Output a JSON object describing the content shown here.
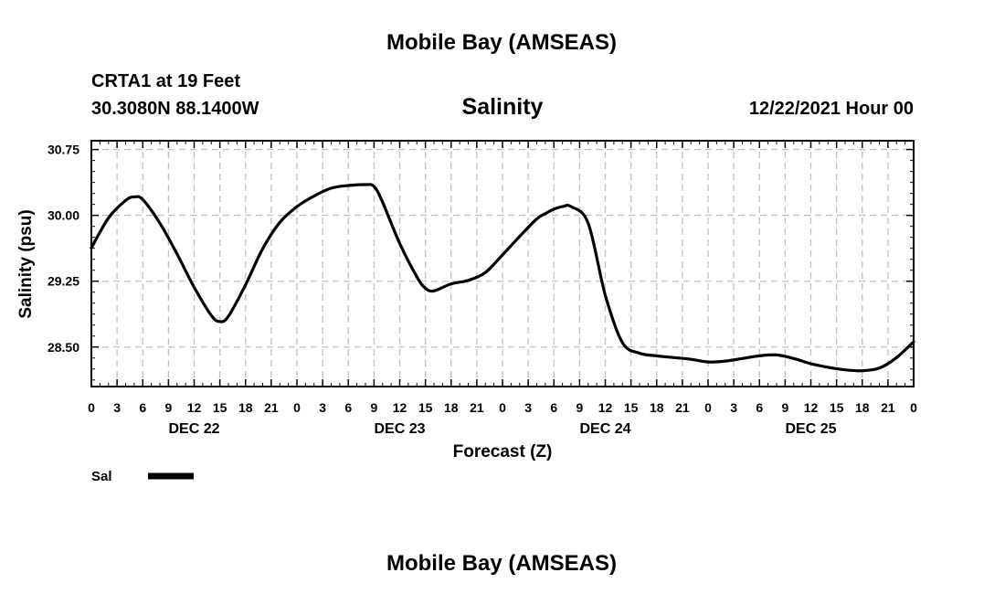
{
  "header": {
    "title_top": "Mobile Bay (AMSEAS)",
    "title_bottom": "Mobile Bay (AMSEAS)",
    "station": "CRTA1 at 19 Feet",
    "location": "30.3080N  88.1400W",
    "forecast_time": "12/22/2021 Hour 00"
  },
  "colors": {
    "line": "#000000",
    "grid": "#c0c0c0",
    "background": "#ffffff"
  },
  "chart_data": {
    "type": "line",
    "title": "Salinity",
    "xlabel": "Forecast (Z)",
    "ylabel": "Salinity (psu)",
    "xlim": [
      0,
      96
    ],
    "ylim": [
      28.05,
      30.85
    ],
    "grid": true,
    "legend_position": "bottom-left",
    "x_tick_labels": [
      "0",
      "3",
      "6",
      "9",
      "12",
      "15",
      "18",
      "21",
      "0",
      "3",
      "6",
      "9",
      "12",
      "15",
      "18",
      "21",
      "0",
      "3",
      "6",
      "9",
      "12",
      "15",
      "18",
      "21",
      "0",
      "3",
      "6",
      "9",
      "12",
      "15",
      "18",
      "21",
      "0"
    ],
    "y_ticks": [
      28.5,
      29.25,
      30.0,
      30.75
    ],
    "y_tick_labels": [
      "28.50",
      "29.25",
      "30.00",
      "30.75"
    ],
    "day_labels": [
      {
        "label": "DEC 22",
        "x": 12
      },
      {
        "label": "DEC 23",
        "x": 36
      },
      {
        "label": "DEC 24",
        "x": 60
      },
      {
        "label": "DEC 25",
        "x": 84
      }
    ],
    "series": [
      {
        "name": "Sal",
        "x": [
          0,
          2,
          4,
          5,
          6,
          8,
          10,
          12,
          14,
          15,
          16,
          18,
          20,
          22,
          24,
          26,
          28,
          30,
          32,
          33,
          34,
          36,
          38,
          39,
          40,
          42,
          44,
          46,
          48,
          50,
          52,
          53,
          54,
          55,
          56,
          58,
          60,
          62,
          64,
          66,
          68,
          70,
          72,
          74,
          76,
          78,
          80,
          82,
          84,
          86,
          88,
          90,
          92,
          94,
          96
        ],
        "y": [
          29.63,
          29.97,
          30.17,
          30.21,
          30.18,
          29.91,
          29.56,
          29.18,
          28.86,
          28.79,
          28.85,
          29.21,
          29.62,
          29.92,
          30.1,
          30.22,
          30.31,
          30.34,
          30.35,
          30.33,
          30.15,
          29.68,
          29.3,
          29.17,
          29.14,
          29.22,
          29.26,
          29.35,
          29.55,
          29.76,
          29.96,
          30.02,
          30.07,
          30.1,
          30.1,
          29.91,
          29.09,
          28.55,
          28.43,
          28.4,
          28.38,
          28.36,
          28.33,
          28.34,
          28.37,
          28.4,
          28.41,
          28.37,
          28.31,
          28.27,
          28.24,
          28.23,
          28.26,
          28.38,
          28.56
        ]
      }
    ]
  }
}
